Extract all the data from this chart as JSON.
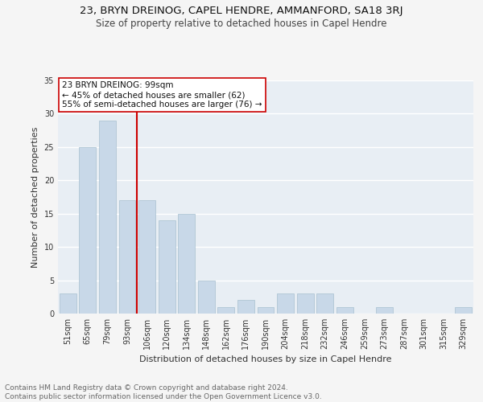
{
  "title": "23, BRYN DREINOG, CAPEL HENDRE, AMMANFORD, SA18 3RJ",
  "subtitle": "Size of property relative to detached houses in Capel Hendre",
  "xlabel": "Distribution of detached houses by size in Capel Hendre",
  "ylabel": "Number of detached properties",
  "categories": [
    "51sqm",
    "65sqm",
    "79sqm",
    "93sqm",
    "106sqm",
    "120sqm",
    "134sqm",
    "148sqm",
    "162sqm",
    "176sqm",
    "190sqm",
    "204sqm",
    "218sqm",
    "232sqm",
    "246sqm",
    "259sqm",
    "273sqm",
    "287sqm",
    "301sqm",
    "315sqm",
    "329sqm"
  ],
  "values": [
    3,
    25,
    29,
    17,
    17,
    14,
    15,
    5,
    1,
    2,
    1,
    3,
    3,
    3,
    1,
    0,
    1,
    0,
    0,
    0,
    1
  ],
  "bar_color": "#c8d8e8",
  "bar_edgecolor": "#a8c0d0",
  "vline_x_index": 3,
  "vline_color": "#cc0000",
  "annotation_line1": "23 BRYN DREINOG: 99sqm",
  "annotation_line2": "← 45% of detached houses are smaller (62)",
  "annotation_line3": "55% of semi-detached houses are larger (76) →",
  "annotation_box_facecolor": "#ffffff",
  "annotation_box_edgecolor": "#cc0000",
  "ylim": [
    0,
    35
  ],
  "yticks": [
    0,
    5,
    10,
    15,
    20,
    25,
    30,
    35
  ],
  "plot_bg_color": "#e8eef4",
  "fig_bg_color": "#f5f5f5",
  "grid_color": "#ffffff",
  "title_fontsize": 9.5,
  "subtitle_fontsize": 8.5,
  "xlabel_fontsize": 8,
  "ylabel_fontsize": 8,
  "tick_fontsize": 7,
  "annotation_fontsize": 7.5,
  "footer_text": "Contains HM Land Registry data © Crown copyright and database right 2024.\nContains public sector information licensed under the Open Government Licence v3.0.",
  "footer_fontsize": 6.5
}
